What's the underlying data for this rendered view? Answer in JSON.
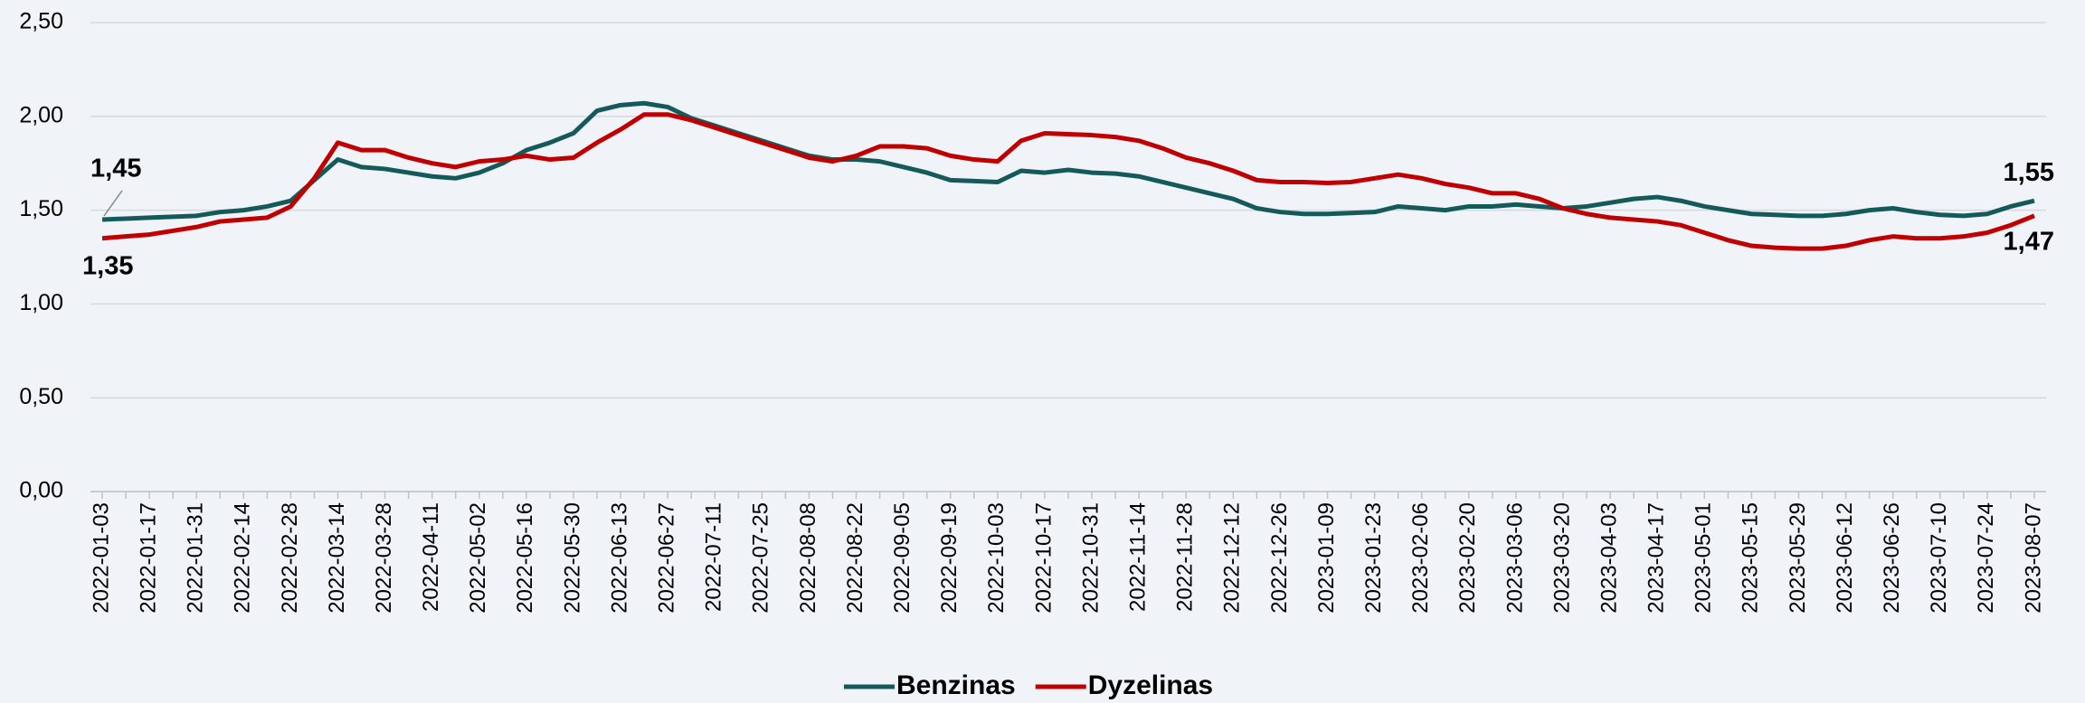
{
  "chart_data": {
    "type": "line",
    "categories": [
      "2022-01-03",
      null,
      "2022-01-17",
      null,
      "2022-01-31",
      null,
      "2022-02-14",
      null,
      "2022-02-28",
      null,
      "2022-03-14",
      null,
      "2022-03-28",
      null,
      "2022-04-11",
      null,
      "2022-05-02",
      null,
      "2022-05-16",
      null,
      "2022-05-30",
      null,
      "2022-06-13",
      null,
      "2022-06-27",
      null,
      "2022-07-11",
      null,
      "2022-07-25",
      null,
      "2022-08-08",
      null,
      "2022-08-22",
      null,
      "2022-09-05",
      null,
      "2022-09-19",
      null,
      "2022-10-03",
      null,
      "2022-10-17",
      null,
      "2022-10-31",
      null,
      "2022-11-14",
      null,
      "2022-11-28",
      null,
      "2022-12-12",
      null,
      "2022-12-26",
      null,
      "2023-01-09",
      null,
      "2023-01-23",
      null,
      "2023-02-06",
      null,
      "2023-02-20",
      null,
      "2023-03-06",
      null,
      "2023-03-20",
      null,
      "2023-04-03",
      null,
      "2023-04-17",
      null,
      "2023-05-01",
      null,
      "2023-05-15",
      null,
      "2023-05-29",
      null,
      "2023-06-12",
      null,
      "2023-06-26",
      null,
      "2023-07-10",
      null,
      "2023-07-24",
      null,
      "2023-08-07"
    ],
    "series": [
      {
        "name": "Benzinas",
        "color": "#145a5b",
        "values": [
          1.45,
          1.455,
          1.46,
          1.465,
          1.47,
          1.49,
          1.5,
          1.52,
          1.55,
          1.66,
          1.77,
          1.73,
          1.72,
          1.7,
          1.68,
          1.67,
          1.7,
          1.75,
          1.82,
          1.86,
          1.91,
          2.03,
          2.06,
          2.07,
          2.05,
          1.99,
          1.95,
          1.91,
          1.87,
          1.83,
          1.79,
          1.77,
          1.77,
          1.76,
          1.73,
          1.7,
          1.66,
          1.655,
          1.65,
          1.71,
          1.7,
          1.715,
          1.7,
          1.695,
          1.68,
          1.65,
          1.62,
          1.59,
          1.56,
          1.51,
          1.49,
          1.48,
          1.48,
          1.485,
          1.49,
          1.52,
          1.51,
          1.5,
          1.52,
          1.52,
          1.53,
          1.52,
          1.51,
          1.52,
          1.54,
          1.56,
          1.57,
          1.55,
          1.52,
          1.5,
          1.48,
          1.475,
          1.47,
          1.47,
          1.48,
          1.5,
          1.51,
          1.49,
          1.475,
          1.47,
          1.48,
          1.52,
          1.55
        ],
        "value_labels": [
          "1,45",
          null,
          null,
          null,
          null,
          null,
          null,
          null,
          null,
          null,
          null,
          null,
          null,
          null,
          null,
          null,
          null,
          null,
          null,
          null,
          null,
          null,
          null,
          null,
          null,
          null,
          null,
          null,
          null,
          null,
          null,
          null,
          null,
          null,
          null,
          null,
          null,
          null,
          null,
          null,
          null,
          null,
          null,
          null,
          null,
          null,
          null,
          null,
          null,
          null,
          null,
          null,
          null,
          null,
          null,
          null,
          null,
          null,
          null,
          null,
          null,
          null,
          null,
          null,
          null,
          null,
          null,
          null,
          null,
          null,
          null,
          null,
          null,
          null,
          null,
          null,
          null,
          null,
          null,
          null,
          null,
          null,
          "1,55"
        ]
      },
      {
        "name": "Dyzelinas",
        "color": "#c00000",
        "values": [
          1.35,
          1.36,
          1.37,
          1.39,
          1.41,
          1.44,
          1.45,
          1.46,
          1.52,
          1.67,
          1.86,
          1.82,
          1.82,
          1.78,
          1.75,
          1.73,
          1.76,
          1.77,
          1.79,
          1.77,
          1.78,
          1.86,
          1.93,
          2.01,
          2.01,
          1.98,
          1.94,
          1.9,
          1.86,
          1.82,
          1.78,
          1.76,
          1.79,
          1.84,
          1.84,
          1.83,
          1.79,
          1.77,
          1.76,
          1.87,
          1.91,
          1.905,
          1.9,
          1.89,
          1.87,
          1.83,
          1.78,
          1.75,
          1.71,
          1.66,
          1.65,
          1.65,
          1.645,
          1.65,
          1.67,
          1.69,
          1.67,
          1.64,
          1.62,
          1.59,
          1.59,
          1.56,
          1.51,
          1.48,
          1.46,
          1.45,
          1.44,
          1.42,
          1.38,
          1.34,
          1.31,
          1.3,
          1.295,
          1.295,
          1.31,
          1.34,
          1.36,
          1.35,
          1.35,
          1.36,
          1.38,
          1.42,
          1.47
        ],
        "value_labels": [
          "1,35",
          null,
          null,
          null,
          null,
          null,
          null,
          null,
          null,
          null,
          null,
          null,
          null,
          null,
          null,
          null,
          null,
          null,
          null,
          null,
          null,
          null,
          null,
          null,
          null,
          null,
          null,
          null,
          null,
          null,
          null,
          null,
          null,
          null,
          null,
          null,
          null,
          null,
          null,
          null,
          null,
          null,
          null,
          null,
          null,
          null,
          null,
          null,
          null,
          null,
          null,
          null,
          null,
          null,
          null,
          null,
          null,
          null,
          null,
          null,
          null,
          null,
          null,
          null,
          null,
          null,
          null,
          null,
          null,
          null,
          null,
          null,
          null,
          null,
          null,
          null,
          null,
          null,
          null,
          null,
          null,
          null,
          "1,47"
        ]
      }
    ],
    "ylim": [
      0,
      2.5
    ],
    "yticks": [
      {
        "value": 0,
        "label": "0,00"
      },
      {
        "value": 0.5,
        "label": "0,50"
      },
      {
        "value": 1,
        "label": "1,00"
      },
      {
        "value": 1.5,
        "label": "1,50"
      },
      {
        "value": 2,
        "label": "2,00"
      },
      {
        "value": 2.5,
        "label": "2,50"
      }
    ],
    "grid": true,
    "legend": "bottom"
  }
}
